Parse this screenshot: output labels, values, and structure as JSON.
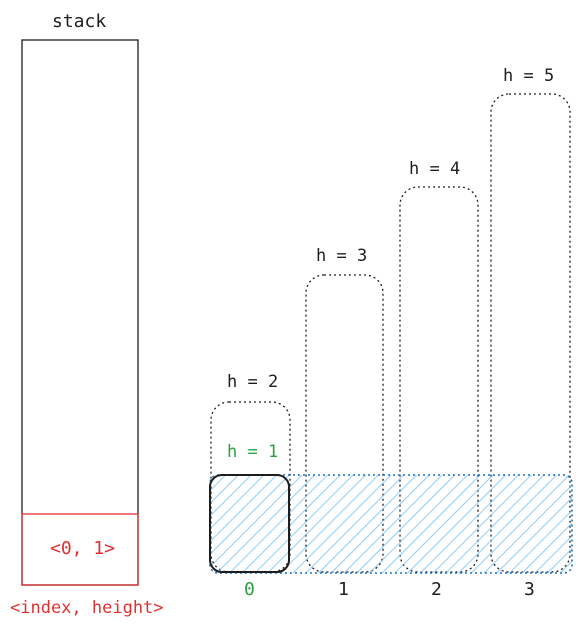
{
  "stack": {
    "title": "stack",
    "entry": "<0, 1>",
    "caption": "<index, height>"
  },
  "bars": [
    {
      "label": "h = 2",
      "height": 2
    },
    {
      "label": "h = 3",
      "height": 3
    },
    {
      "label": "h = 4",
      "height": 4
    },
    {
      "label": "h = 5",
      "height": 5
    }
  ],
  "current": {
    "label": "h = 1",
    "height": 1
  },
  "indices": [
    "0",
    "1",
    "2",
    "3"
  ],
  "colors": {
    "stroke": "#1e1e1e",
    "red": "#e03131",
    "green": "#2f9e44",
    "hatch": "#4dabf7"
  }
}
